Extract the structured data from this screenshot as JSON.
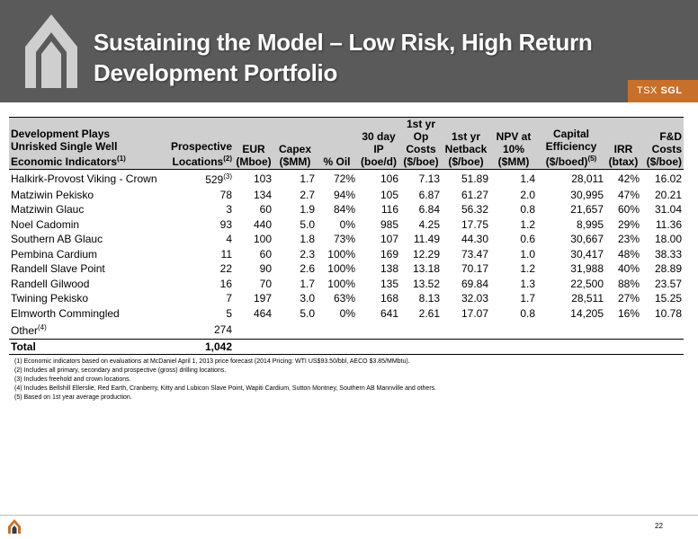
{
  "header": {
    "title_line1": "Sustaining the Model – Low Risk, High Return",
    "title_line2": "Development Portfolio",
    "ticker_prefix": "TSX",
    "ticker_symbol": "SGL",
    "colors": {
      "band": "#5a5a5a",
      "accent": "#c8702a"
    },
    "logo_icon": "company-logo-icon"
  },
  "table": {
    "headers": {
      "plays_l1": "Development Plays",
      "plays_l2": "Unrisked Single Well",
      "plays_l3": "Economic Indicators",
      "plays_sup": "(1)",
      "loc_l1": "Prospective",
      "loc_l2": "Locations",
      "loc_sup": "(2)",
      "eur_l1": "EUR",
      "eur_l2": "(Mboe)",
      "capex_l1": "Capex",
      "capex_l2": "($MM)",
      "oil": "% Oil",
      "ip_l1": "30 day",
      "ip_l2": "IP",
      "ip_l3": "(boe/d)",
      "op_l1": "1st yr",
      "op_l2": "Op",
      "op_l3": "Costs",
      "op_l4": "($/boe)",
      "net_l1": "1st yr",
      "net_l2": "Netback",
      "net_l3": "($/boe)",
      "npv_l1": "NPV at",
      "npv_l2": "10%",
      "npv_l3": "($MM)",
      "cap_l1": "Capital",
      "cap_l2": "Efficiency",
      "cap_l3": "($/boed)",
      "cap_sup": "(5)",
      "irr_l1": "IRR",
      "irr_l2": "(btax)",
      "fd_l1": "F&D",
      "fd_l2": "Costs",
      "fd_l3": "($/boe)"
    },
    "rows": [
      {
        "name": "Halkirk-Provost Viking - Crown",
        "locations": "529",
        "loc_sup": "(3)",
        "eur": "103",
        "capex": "1.7",
        "oil": "72%",
        "ip": "106",
        "op": "7.13",
        "netback": "51.89",
        "npv": "1.4",
        "cap_eff": "28,011",
        "irr": "42%",
        "fd": "16.02"
      },
      {
        "name": "Matziwin Pekisko",
        "locations": "78",
        "loc_sup": "",
        "eur": "134",
        "capex": "2.7",
        "oil": "94%",
        "ip": "105",
        "op": "6.87",
        "netback": "61.27",
        "npv": "2.0",
        "cap_eff": "30,995",
        "irr": "47%",
        "fd": "20.21"
      },
      {
        "name": "Matziwin Glauc",
        "locations": "3",
        "loc_sup": "",
        "eur": "60",
        "capex": "1.9",
        "oil": "84%",
        "ip": "116",
        "op": "6.84",
        "netback": "56.32",
        "npv": "0.8",
        "cap_eff": "21,657",
        "irr": "60%",
        "fd": "31.04"
      },
      {
        "name": "Noel Cadomin",
        "locations": "93",
        "loc_sup": "",
        "eur": "440",
        "capex": "5.0",
        "oil": "0%",
        "ip": "985",
        "op": "4.25",
        "netback": "17.75",
        "npv": "1.2",
        "cap_eff": "8,995",
        "irr": "29%",
        "fd": "11.36"
      },
      {
        "name": "Southern AB Glauc",
        "locations": "4",
        "loc_sup": "",
        "eur": "100",
        "capex": "1.8",
        "oil": "73%",
        "ip": "107",
        "op": "11.49",
        "netback": "44.30",
        "npv": "0.6",
        "cap_eff": "30,667",
        "irr": "23%",
        "fd": "18.00"
      },
      {
        "name": "Pembina Cardium",
        "locations": "11",
        "loc_sup": "",
        "eur": "60",
        "capex": "2.3",
        "oil": "100%",
        "ip": "169",
        "op": "12.29",
        "netback": "73.47",
        "npv": "1.0",
        "cap_eff": "30,417",
        "irr": "48%",
        "fd": "38.33"
      },
      {
        "name": "Randell Slave Point",
        "locations": "22",
        "loc_sup": "",
        "eur": "90",
        "capex": "2.6",
        "oil": "100%",
        "ip": "138",
        "op": "13.18",
        "netback": "70.17",
        "npv": "1.2",
        "cap_eff": "31,988",
        "irr": "40%",
        "fd": "28.89"
      },
      {
        "name": "Randell Gilwood",
        "locations": "16",
        "loc_sup": "",
        "eur": "70",
        "capex": "1.7",
        "oil": "100%",
        "ip": "135",
        "op": "13.52",
        "netback": "69.84",
        "npv": "1.3",
        "cap_eff": "22,500",
        "irr": "88%",
        "fd": "23.57"
      },
      {
        "name": "Twining Pekisko",
        "locations": "7",
        "loc_sup": "",
        "eur": "197",
        "capex": "3.0",
        "oil": "63%",
        "ip": "168",
        "op": "8.13",
        "netback": "32.03",
        "npv": "1.7",
        "cap_eff": "28,511",
        "irr": "27%",
        "fd": "15.25"
      },
      {
        "name": "Elmworth Commingled",
        "locations": "5",
        "loc_sup": "",
        "eur": "464",
        "capex": "5.0",
        "oil": "0%",
        "ip": "641",
        "op": "2.61",
        "netback": "17.07",
        "npv": "0.8",
        "cap_eff": "14,205",
        "irr": "16%",
        "fd": "10.78"
      }
    ],
    "other": {
      "name": "Other",
      "sup": "(4)",
      "locations": "274"
    },
    "total": {
      "name": "Total",
      "locations": "1,042"
    }
  },
  "footnotes": [
    "(1) Economic indicators based on evaluations at McDaniel April 1, 2013 price forecast (2014 Pricing: WTI US$93.50/bbl, AECO $3.85/MMbtu).",
    "(2) Includes all primary, secondary and prospective (gross) drilling locations.",
    "(3) Includes freehold and crown locations.",
    "(4) Includes Bellshill Ellerslie, Red Earth, Cranberry, Kitty and Lubicon Slave Point, Wapiti Cardium, Sutton Montney, Southern AB Mannville and others.",
    "(5) Based on 1st year average production."
  ],
  "footer": {
    "page_number": "22",
    "logo_icon": "small-company-logo-icon"
  }
}
